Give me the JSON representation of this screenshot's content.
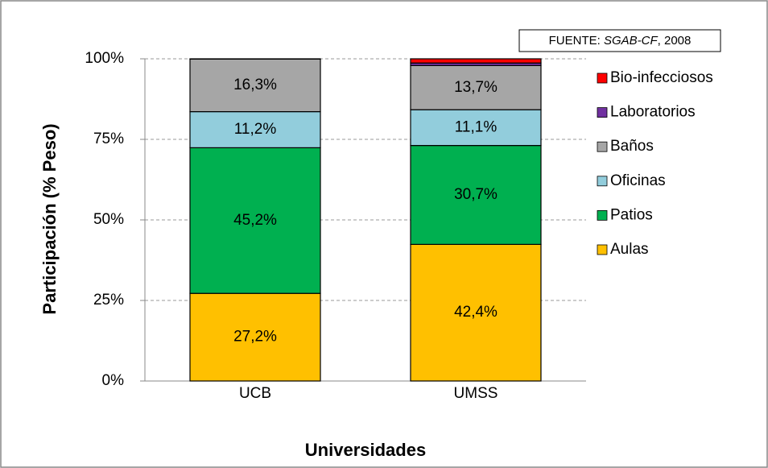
{
  "chart_data": {
    "type": "stacked-bar",
    "source": {
      "prefix": "FUENTE: ",
      "italic": "SGAB-CF",
      "suffix": ", 2008"
    },
    "xlabel": "Universidades",
    "ylabel": "Participación (% Peso)",
    "categories": [
      "UCB",
      "UMSS"
    ],
    "series": [
      {
        "name": "Aulas",
        "color": "#ffc000",
        "values": [
          27.2,
          42.4
        ],
        "value_labels": [
          "27,2%",
          "42,4%"
        ]
      },
      {
        "name": "Patios",
        "color": "#00b050",
        "values": [
          45.2,
          30.7
        ],
        "value_labels": [
          "45,2%",
          "30,7%"
        ]
      },
      {
        "name": "Oficinas",
        "color": "#92cddc",
        "values": [
          11.2,
          11.1
        ],
        "value_labels": [
          "11,2%",
          "11,1%"
        ]
      },
      {
        "name": "Baños",
        "color": "#a6a6a6",
        "values": [
          16.3,
          13.7
        ],
        "value_labels": [
          "16,3%",
          "13,7%"
        ]
      },
      {
        "name": "Laboratorios",
        "color": "#7030a0",
        "values": [
          0.05,
          0.8
        ]
      },
      {
        "name": "Bio-infecciosos",
        "color": "#ff0000",
        "values": [
          0.05,
          1.3
        ]
      }
    ],
    "ylim": [
      0,
      100
    ],
    "yticks": [
      {
        "value": 0,
        "label": "0%"
      },
      {
        "value": 25,
        "label": "25%"
      },
      {
        "value": 50,
        "label": "50%"
      },
      {
        "value": 75,
        "label": "75%"
      },
      {
        "value": 100,
        "label": "100%"
      }
    ],
    "grid": true,
    "legend": "right"
  }
}
